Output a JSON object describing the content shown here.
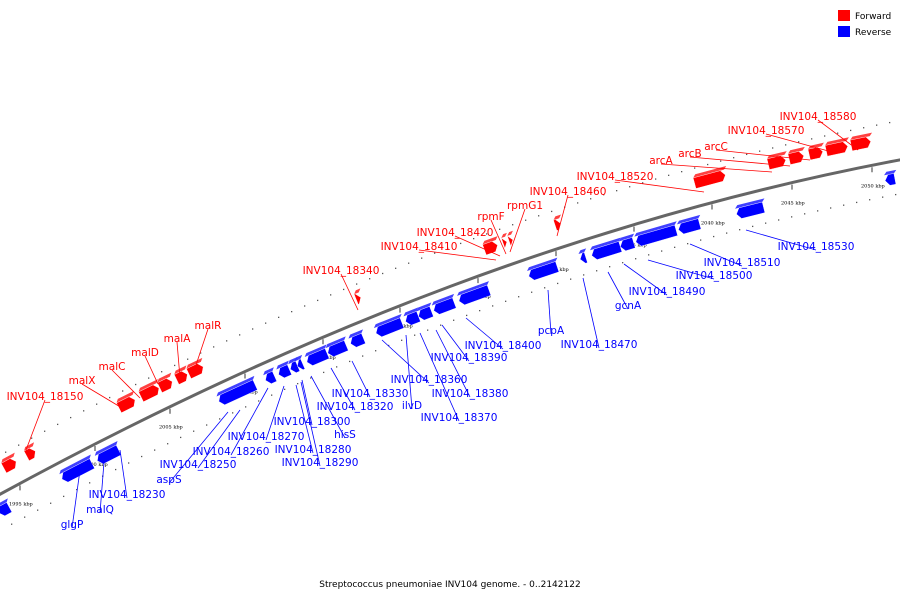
{
  "legend": [
    {
      "label": "Forward",
      "color": "#ff0000"
    },
    {
      "label": "Reverse",
      "color": "#0000ff"
    }
  ],
  "caption": "Streptococcus pneumoniae INV104 genome. - 0..2142122",
  "colors": {
    "forward": "#ff0000",
    "reverse": "#0000ff",
    "backbone": "#666666"
  },
  "ticks": [
    {
      "label": "1995 kbp",
      "kbp": 1995
    },
    {
      "label": "2000 kbp",
      "kbp": 2000
    },
    {
      "label": "2005 kbp",
      "kbp": 2005
    },
    {
      "label": "2010 kbp",
      "kbp": 2010
    },
    {
      "label": "2015 kbp",
      "kbp": 2015
    },
    {
      "label": "2020 kbp",
      "kbp": 2020
    },
    {
      "label": "2025 kbp",
      "kbp": 2025
    },
    {
      "label": "2030 kbp",
      "kbp": 2030
    },
    {
      "label": "2035 kbp",
      "kbp": 2035
    },
    {
      "label": "2040 kbp",
      "kbp": 2040
    },
    {
      "label": "2045 kbp",
      "kbp": 2045
    },
    {
      "label": "2050 kbp",
      "kbp": 2050
    }
  ],
  "forward_genes": [
    {
      "name": "INV104_18150"
    },
    {
      "name": "malX"
    },
    {
      "name": "malC"
    },
    {
      "name": "malD"
    },
    {
      "name": "malA"
    },
    {
      "name": "malR"
    },
    {
      "name": "INV104_18340"
    },
    {
      "name": "INV104_18410"
    },
    {
      "name": "INV104_18420"
    },
    {
      "name": "rpmF"
    },
    {
      "name": "rpmG1"
    },
    {
      "name": "INV104_18460"
    },
    {
      "name": "INV104_18520"
    },
    {
      "name": "arcA"
    },
    {
      "name": "arcB"
    },
    {
      "name": "arcC"
    },
    {
      "name": "INV104_18570"
    },
    {
      "name": "INV104_18580"
    }
  ],
  "reverse_genes": [
    {
      "name": "glgP"
    },
    {
      "name": "malQ"
    },
    {
      "name": "INV104_18230"
    },
    {
      "name": "aspS"
    },
    {
      "name": "INV104_18250"
    },
    {
      "name": "INV104_18260"
    },
    {
      "name": "INV104_18270"
    },
    {
      "name": "INV104_18280"
    },
    {
      "name": "INV104_18290"
    },
    {
      "name": "INV104_18300"
    },
    {
      "name": "hisS"
    },
    {
      "name": "INV104_18320"
    },
    {
      "name": "INV104_18330"
    },
    {
      "name": "INV104_18360"
    },
    {
      "name": "ilvD"
    },
    {
      "name": "INV104_18370"
    },
    {
      "name": "INV104_18380"
    },
    {
      "name": "INV104_18390"
    },
    {
      "name": "INV104_18400"
    },
    {
      "name": "pcpA"
    },
    {
      "name": "INV104_18470"
    },
    {
      "name": "gcnA"
    },
    {
      "name": "INV104_18490"
    },
    {
      "name": "INV104_18500"
    },
    {
      "name": "INV104_18510"
    },
    {
      "name": "INV104_18530"
    }
  ]
}
